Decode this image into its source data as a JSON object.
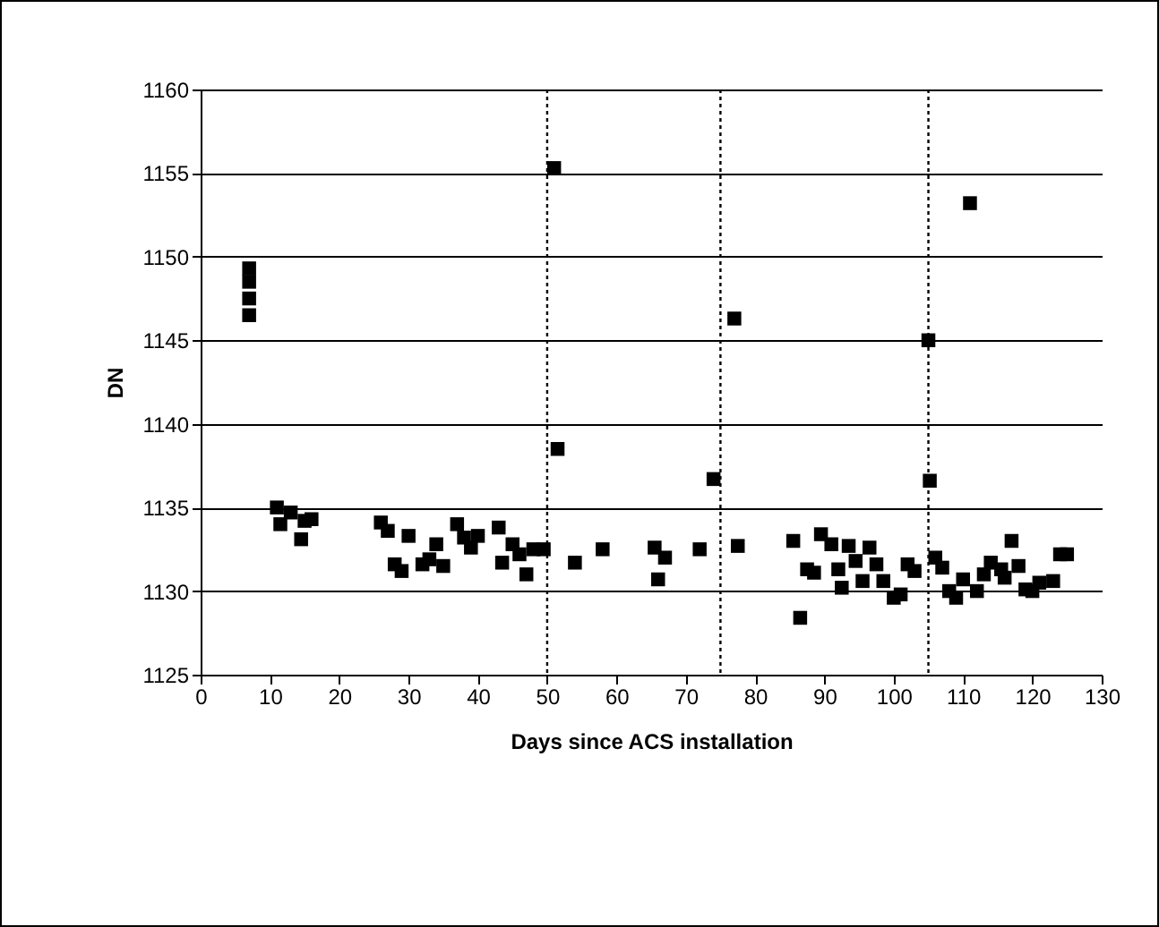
{
  "chart_data": {
    "type": "scatter",
    "xlabel": "Days since ACS installation",
    "ylabel": "DN",
    "xlim": [
      0,
      130
    ],
    "xticks": [
      0,
      10,
      20,
      30,
      40,
      50,
      60,
      70,
      80,
      90,
      100,
      110,
      120,
      130
    ],
    "ylim": [
      1125,
      1160
    ],
    "yticks": [
      1125,
      1130,
      1135,
      1140,
      1145,
      1150,
      1155,
      1160
    ],
    "grid": "y",
    "marker": "square",
    "legend": false,
    "ref_lines": [
      {
        "axis": "x",
        "value": 50,
        "line_style": "dotted",
        "color": "#000000"
      },
      {
        "axis": "x",
        "value": 75,
        "line_style": "dotted",
        "color": "#000000"
      },
      {
        "axis": "x",
        "value": 105,
        "line_style": "dotted",
        "color": "#000000"
      }
    ],
    "series": [
      {
        "color": "#000000",
        "x": [
          7,
          7,
          7,
          7,
          11,
          11.5,
          13,
          14.5,
          15,
          16,
          26,
          27,
          28,
          29,
          30,
          32,
          33,
          34,
          35,
          37,
          38,
          39,
          40,
          43,
          43.5,
          45,
          46,
          47,
          48,
          49.5,
          51,
          51.5,
          54,
          58,
          65.5,
          66,
          67,
          72,
          74,
          77,
          77.5,
          85.5,
          86.5,
          87.5,
          88.5,
          89.5,
          91,
          92,
          92.5,
          93.5,
          94.5,
          95.5,
          96.5,
          97.5,
          98.5,
          100,
          101,
          102,
          103,
          105,
          105.2,
          106,
          107,
          108,
          109,
          110,
          111,
          112,
          113,
          114,
          115.5,
          116,
          117,
          118,
          119,
          120,
          121,
          123,
          124,
          125
        ],
        "values": [
          1146.5,
          1147.5,
          1148.5,
          1149.3,
          1135,
          1134,
          1134.7,
          1133.1,
          1134.2,
          1134.3,
          1134.1,
          1133.6,
          1131.6,
          1131.2,
          1133.3,
          1131.6,
          1131.9,
          1132.8,
          1131.5,
          1134,
          1133.2,
          1132.6,
          1133.3,
          1133.8,
          1131.7,
          1132.8,
          1132.2,
          1131,
          1132.5,
          1132.5,
          1155.3,
          1138.5,
          1131.7,
          1132.5,
          1132.6,
          1130.7,
          1132,
          1132.5,
          1136.7,
          1146.3,
          1132.7,
          1133,
          1128.4,
          1131.3,
          1131.1,
          1133.4,
          1132.8,
          1131.3,
          1130.2,
          1132.7,
          1131.8,
          1130.6,
          1132.6,
          1131.6,
          1130.6,
          1129.6,
          1129.8,
          1131.6,
          1131.2,
          1145,
          1136.6,
          1132,
          1131.4,
          1130,
          1129.6,
          1130.7,
          1153.2,
          1130,
          1131,
          1131.7,
          1131.3,
          1130.8,
          1133,
          1131.5,
          1130.1,
          1130,
          1130.5,
          1130.6,
          1132.2,
          1132.2
        ]
      }
    ]
  }
}
